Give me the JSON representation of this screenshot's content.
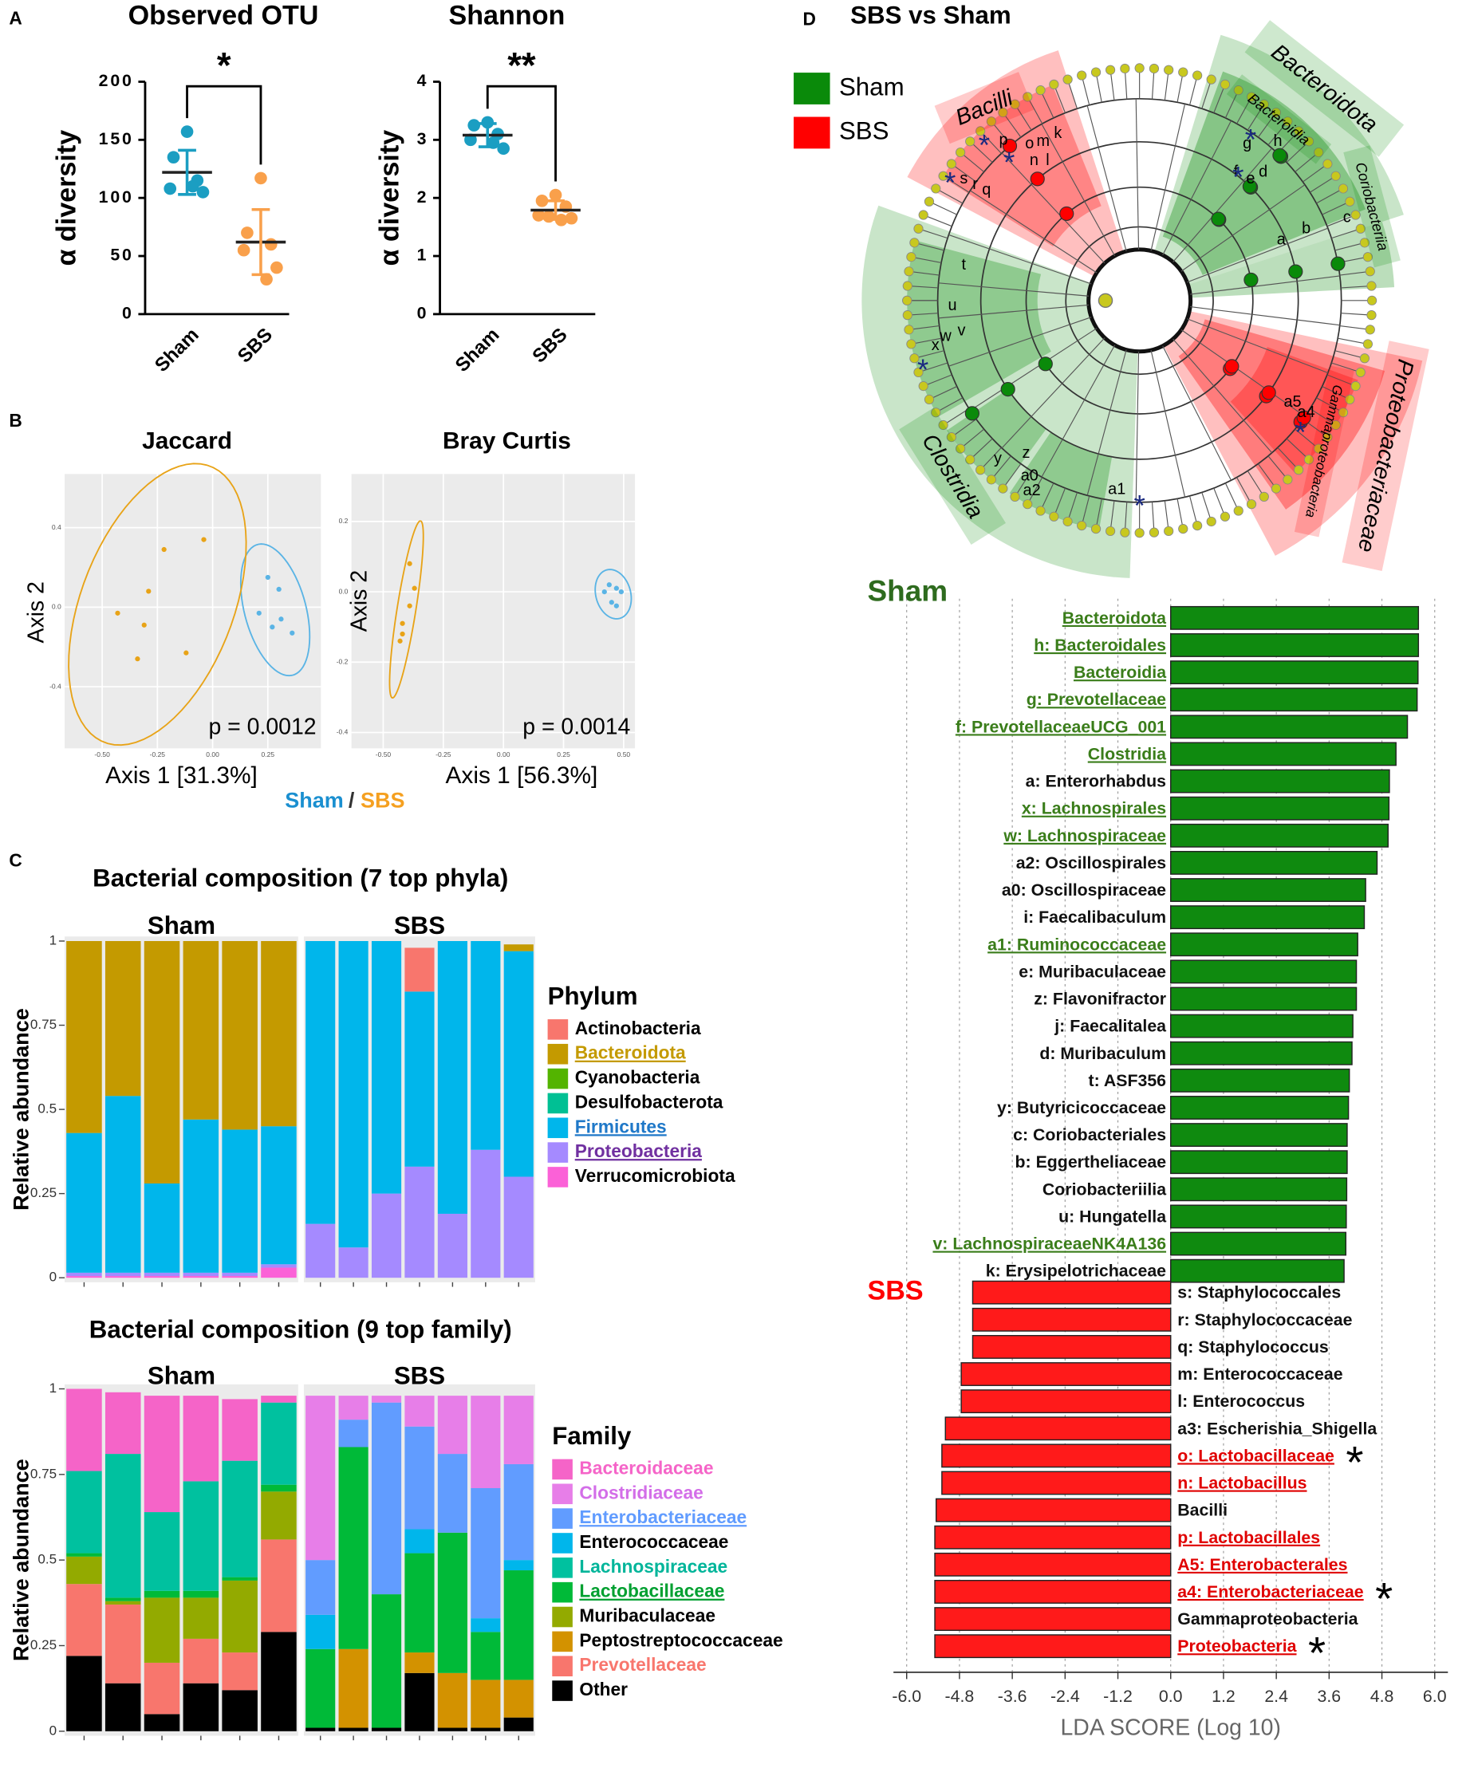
{
  "panel_labels": [
    "A",
    "B",
    "C",
    "D"
  ],
  "group_legend": [
    {
      "text": "Sham",
      "color": "#1a8fd0"
    },
    {
      "text": "/",
      "color": "#333333"
    },
    {
      "text": "SBS",
      "color": "#f5a020"
    }
  ],
  "chart_data": [
    {
      "type": "dotplot",
      "title": "Observed  OTU",
      "ylabel": "α diversity",
      "categories": [
        "Sham",
        "SBS"
      ],
      "colors": [
        "#1b9ec2",
        "#f9a04b"
      ],
      "values": [
        [
          157,
          135,
          115,
          108,
          105,
          110
        ],
        [
          117,
          70,
          60,
          55,
          40,
          30
        ]
      ],
      "means": [
        122,
        62
      ],
      "sd": [
        19,
        28
      ],
      "ylim": [
        0,
        200
      ],
      "yticks": [
        0,
        50,
        100,
        150,
        200
      ],
      "significance": "*"
    },
    {
      "type": "dotplot",
      "title": "Shannon",
      "ylabel": "α diversity",
      "categories": [
        "Sham",
        "SBS"
      ],
      "colors": [
        "#1b9ec2",
        "#f9a04b"
      ],
      "values": [
        [
          3.3,
          3.25,
          3.1,
          3.0,
          2.85,
          2.95
        ],
        [
          2.05,
          1.95,
          1.85,
          1.7,
          1.65,
          1.62,
          1.68
        ]
      ],
      "means": [
        3.08,
        1.79
      ],
      "sd": [
        0.2,
        0.16
      ],
      "ylim": [
        0,
        4
      ],
      "yticks": [
        0,
        1,
        2,
        3,
        4
      ],
      "significance": "**"
    },
    {
      "type": "pcoa",
      "title": "Jaccard",
      "xlabel": "Axis 1 [31.3%]",
      "ylabel": "Axis 2",
      "annotation": "p = 0.0012",
      "xlim": [
        -0.67,
        0.49
      ],
      "ylim": [
        -0.71,
        0.67
      ],
      "xticks": [
        {
          "value": -0.5,
          "label": "-0.50"
        },
        -0.25,
        {
          "value": 0,
          "label": "0.00"
        },
        0.25
      ],
      "yticks": [
        -0.4,
        {
          "value": 0,
          "label": "0.0"
        },
        0.4
      ],
      "series": [
        {
          "name": "Sham",
          "color": "#5ab4e5",
          "x": [
            0.25,
            0.3,
            0.21,
            0.31,
            0.27,
            0.36
          ],
          "y": [
            0.15,
            0.09,
            -0.03,
            -0.06,
            -0.1,
            -0.13
          ]
        },
        {
          "name": "SBS",
          "color": "#e8a317",
          "x": [
            -0.22,
            -0.04,
            -0.29,
            -0.43,
            -0.31,
            -0.34,
            -0.12
          ],
          "y": [
            0.29,
            0.34,
            0.08,
            -0.03,
            -0.09,
            -0.26,
            -0.23
          ]
        }
      ]
    },
    {
      "type": "pcoa",
      "title": "Bray Curtis",
      "xlabel": "Axis 1 [56.3%]",
      "ylabel": "Axis 2",
      "annotation": "p = 0.0014",
      "xlim": [
        -0.632,
        0.547
      ],
      "ylim": [
        -0.445,
        0.335
      ],
      "xticks": [
        {
          "value": -0.5,
          "label": "-0.50"
        },
        -0.25,
        {
          "value": 0,
          "label": "0.00"
        },
        0.25,
        {
          "value": 0.5,
          "label": "0.50"
        }
      ],
      "yticks": [
        0.2,
        {
          "value": 0,
          "label": "0.0"
        },
        -0.2,
        -0.4
      ],
      "series": [
        {
          "name": "Sham",
          "color": "#5ab4e5",
          "x": [
            0.44,
            0.47,
            0.49,
            0.45,
            0.42,
            0.47
          ],
          "y": [
            0.02,
            0.01,
            0.0,
            -0.03,
            0.0,
            -0.04
          ]
        },
        {
          "name": "SBS",
          "color": "#e8a317",
          "x": [
            -0.39,
            -0.37,
            -0.39,
            -0.42,
            -0.42,
            -0.43
          ],
          "y": [
            0.08,
            0.01,
            -0.04,
            -0.09,
            -0.12,
            -0.14
          ]
        }
      ]
    },
    {
      "type": "stacked_bar",
      "title": "Bacterial composition (7 top phyla)",
      "ylabel": "Relative abundance",
      "legend_title": "Phylum",
      "facets": [
        {
          "name": "Sham",
          "n": 6
        },
        {
          "name": "SBS",
          "n": 7
        }
      ],
      "ylim": [
        0,
        1
      ],
      "yticks": [
        0,
        0.25,
        0.5,
        0.75,
        1
      ],
      "series": [
        {
          "name": "Actinobacteria",
          "color": "#f8766d",
          "values": [
            0,
            0,
            0,
            0,
            0,
            0,
            0,
            0,
            0,
            0.13,
            0,
            0,
            0
          ]
        },
        {
          "name": "Bacteroidota",
          "color": "#c49a00",
          "label_color": "#c49a00",
          "underline": true,
          "values": [
            0.57,
            0.46,
            0.72,
            0.53,
            0.56,
            0.55,
            0,
            0,
            0,
            0,
            0,
            0,
            0.02
          ]
        },
        {
          "name": "Cyanobacteria",
          "color": "#53b400",
          "values": [
            0,
            0,
            0,
            0,
            0,
            0,
            0,
            0,
            0,
            0,
            0,
            0,
            0
          ]
        },
        {
          "name": "Desulfobacterota",
          "color": "#00c094",
          "values": [
            0,
            0,
            0,
            0,
            0,
            0,
            0,
            0,
            0,
            0,
            0,
            0,
            0
          ]
        },
        {
          "name": "Firmicutes",
          "color": "#00b6eb",
          "label_color": "#1f78c8",
          "underline": true,
          "values": [
            0.415,
            0.525,
            0.265,
            0.455,
            0.425,
            0.41,
            0.84,
            0.91,
            0.75,
            0.52,
            0.81,
            0.62,
            0.67
          ]
        },
        {
          "name": "Proteobacteria",
          "color": "#a58aff",
          "label_color": "#7030a0",
          "underline": true,
          "values": [
            0.01,
            0.01,
            0.01,
            0.01,
            0.01,
            0.01,
            0.16,
            0.09,
            0.25,
            0.33,
            0.19,
            0.38,
            0.3
          ]
        },
        {
          "name": "Verrucomicrobiota",
          "color": "#fb61d7",
          "values": [
            0.005,
            0.005,
            0.005,
            0.005,
            0.005,
            0.03,
            0,
            0,
            0,
            0,
            0,
            0,
            0
          ]
        }
      ]
    },
    {
      "type": "stacked_bar",
      "title": "Bacterial composition (9 top family)",
      "ylabel": "Relative abundance",
      "legend_title": "Family",
      "facets": [
        {
          "name": "Sham",
          "n": 6
        },
        {
          "name": "SBS",
          "n": 7
        }
      ],
      "ylim": [
        0,
        1
      ],
      "yticks": [
        0,
        0.25,
        0.5,
        0.75,
        1
      ],
      "series": [
        {
          "name": "Bacteroidaceae",
          "color": "#f564c8",
          "label_color": "#f564c8",
          "values": [
            0.24,
            0.18,
            0.34,
            0.25,
            0.18,
            0.02,
            0,
            0,
            0,
            0,
            0,
            0,
            0
          ]
        },
        {
          "name": "Clostridiaceae",
          "color": "#e77ee8",
          "label_color": "#d36ee8",
          "values": [
            0,
            0,
            0,
            0,
            0,
            0,
            0.48,
            0.07,
            0.02,
            0.09,
            0.17,
            0.27,
            0.2
          ]
        },
        {
          "name": "Enterobacteriaceae",
          "color": "#619cff",
          "label_color": "#619cff",
          "underline": true,
          "values": [
            0,
            0,
            0,
            0,
            0,
            0,
            0.16,
            0.08,
            0.56,
            0.3,
            0.23,
            0.38,
            0.28
          ]
        },
        {
          "name": "Enterococcaceae",
          "color": "#00b6eb",
          "values": [
            0,
            0,
            0,
            0,
            0,
            0,
            0.1,
            0,
            0,
            0.07,
            0,
            0.04,
            0.03
          ]
        },
        {
          "name": "Lachnospiraceae",
          "color": "#00c19f",
          "label_color": "#00b59a",
          "values": [
            0.24,
            0.42,
            0.23,
            0.32,
            0.34,
            0.24,
            0,
            0,
            0,
            0,
            0,
            0,
            0
          ]
        },
        {
          "name": "Lactobacillaceae",
          "color": "#00ba38",
          "label_color": "#00a030",
          "underline": true,
          "values": [
            0.01,
            0.01,
            0.02,
            0.02,
            0.01,
            0.02,
            0.23,
            0.59,
            0.39,
            0.29,
            0.41,
            0.14,
            0.32
          ]
        },
        {
          "name": "Muribaculaceae",
          "color": "#93aa00",
          "values": [
            0.08,
            0.01,
            0.19,
            0.12,
            0.21,
            0.14,
            0,
            0,
            0,
            0,
            0,
            0,
            0
          ]
        },
        {
          "name": "Peptostreptococcaceae",
          "color": "#d39200",
          "values": [
            0,
            0,
            0,
            0,
            0,
            0,
            0,
            0.23,
            0,
            0.06,
            0.16,
            0.14,
            0.11
          ]
        },
        {
          "name": "Prevotellaceae",
          "color": "#f8766d",
          "label_color": "#f8766d",
          "values": [
            0.21,
            0.23,
            0.15,
            0.13,
            0.11,
            0.27,
            0,
            0,
            0,
            0,
            0,
            0,
            0
          ]
        },
        {
          "name": "Other",
          "color": "#000000",
          "values": [
            0.22,
            0.14,
            0.05,
            0.14,
            0.12,
            0.29,
            0.01,
            0.01,
            0.01,
            0.17,
            0.01,
            0.01,
            0.04
          ]
        }
      ]
    },
    {
      "type": "cladogram",
      "title": "SBS vs Sham",
      "legend": [
        {
          "name": "Sham",
          "color": "#0a8a0a"
        },
        {
          "name": "SBS",
          "color": "#ff0000"
        }
      ],
      "clades": [
        {
          "name": "Bacilli",
          "color": "#ff0000"
        },
        {
          "name": "Bacteroidota",
          "color": "#0a8a0a"
        },
        {
          "name": "Bacteroidia",
          "color": "#0a8a0a"
        },
        {
          "name": "Coriobacteriia",
          "color": "#0a8a0a"
        },
        {
          "name": "Proteobacteriaceae",
          "color": "#ff0000"
        },
        {
          "name": "Gammaproteobacteria",
          "color": "#ff0000"
        },
        {
          "name": "Clostridia",
          "color": "#0a8a0a"
        }
      ],
      "node_labels": [
        "p",
        "o",
        "m",
        "k",
        "n",
        "l",
        "s",
        "r",
        "q",
        "g",
        "h",
        "f",
        "e",
        "d",
        "a",
        "b",
        "c",
        "t",
        "u",
        "v",
        "w",
        "x",
        "y",
        "z",
        "a0",
        "a2",
        "a1",
        "a5",
        "a4"
      ],
      "significance_mark": "*"
    },
    {
      "type": "lda",
      "xlabel": "LDA SCORE (Log 10)",
      "xlim": [
        -6.3,
        6.3
      ],
      "xticks": [
        {
          "value": -6,
          "label": "-6.0"
        },
        -4.8,
        -3.6,
        -2.4,
        -1.2,
        {
          "value": 0,
          "label": "0.0"
        },
        1.2,
        2.4,
        3.6,
        4.8,
        {
          "value": 6,
          "label": "6.0"
        }
      ],
      "groups": [
        {
          "name": "Sham",
          "color": "#0f8a0f",
          "label_color": "#3a7d1a",
          "categories": [
            "Bacteroidota",
            "h: Bacteroidales",
            "Bacteroidia",
            "g: Prevotellaceae",
            "f: PrevotellaceaeUCG_001",
            "Clostridia",
            "a: Enterorhabdus",
            "x: Lachnospirales",
            "w: Lachnospiraceae",
            "a2: Oscillospirales",
            "a0: Oscillospiraceae",
            "i: Faecalibaculum",
            "a1: Ruminococcaceae",
            "e: Muribaculaceae",
            "z: Flavonifractor",
            "j: Faecalitalea",
            "d: Muribaculum",
            "t: ASF356",
            "y: Butyricicoccaceae",
            "c: Coriobacteriales",
            "b: Eggertheliaceae",
            "Coriobacteriilia",
            "u: Hungatella",
            "v: LachnospiraceaeNK4A136",
            "k: Erysipelotrichaceae"
          ],
          "values": [
            5.63,
            5.63,
            5.62,
            5.6,
            5.38,
            5.12,
            4.97,
            4.96,
            4.94,
            4.69,
            4.43,
            4.4,
            4.25,
            4.22,
            4.22,
            4.14,
            4.12,
            4.06,
            4.04,
            4.01,
            4.01,
            4.0,
            3.99,
            3.98,
            3.94
          ],
          "underline": [
            true,
            true,
            true,
            true,
            true,
            true,
            false,
            true,
            true,
            false,
            false,
            false,
            true,
            false,
            false,
            false,
            false,
            false,
            false,
            false,
            false,
            false,
            false,
            true,
            false
          ]
        },
        {
          "name": "SBS",
          "color": "#ff1a1a",
          "label_color": "#e00000",
          "categories": [
            "s: Staphylococcales",
            "r: Staphylococcaceae",
            "q: Staphylococcus",
            "m: Enterococcaceae",
            "l: Enterococcus",
            "a3: Escherishia_Shigella",
            "o: Lactobacillaceae",
            "n: Lactobacillus",
            "Bacilli",
            "p: Lactobacillales",
            "A5:  Enterobacterales",
            "a4: Enterobacteriaceae",
            "Gammaproteobacteria",
            "Proteobacteria"
          ],
          "values": [
            -4.5,
            -4.5,
            -4.5,
            -4.76,
            -4.76,
            -5.12,
            -5.2,
            -5.2,
            -5.33,
            -5.36,
            -5.36,
            -5.36,
            -5.36,
            -5.36
          ],
          "underline": [
            false,
            false,
            false,
            false,
            false,
            false,
            true,
            true,
            false,
            true,
            true,
            true,
            false,
            true
          ],
          "stars": [
            null,
            null,
            null,
            null,
            null,
            null,
            "*",
            null,
            null,
            null,
            null,
            "*",
            null,
            "*"
          ]
        }
      ]
    }
  ]
}
